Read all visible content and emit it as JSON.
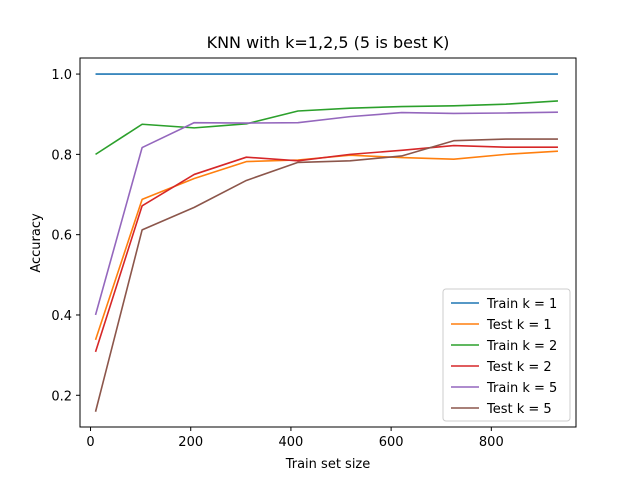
{
  "chart_data": {
    "type": "line",
    "title": "KNN with k=1,2,5 (5 is best K)",
    "xlabel": "Train set size",
    "ylabel": "Accuracy",
    "xlim": [
      -21,
      969
    ],
    "ylim": [
      0.121,
      1.04
    ],
    "xticks": [
      0,
      200,
      400,
      600,
      800
    ],
    "yticks": [
      0.2,
      0.4,
      0.6,
      0.8,
      1.0
    ],
    "xtick_labels": [
      "0",
      "200",
      "400",
      "600",
      "800"
    ],
    "ytick_labels": [
      "0.2",
      "0.4",
      "0.6",
      "0.8",
      "1.0"
    ],
    "legend_position": "lower-right",
    "x": [
      10,
      103,
      207,
      311,
      414,
      518,
      621,
      725,
      829,
      933
    ],
    "series": [
      {
        "name": "Train k = 1",
        "color": "#1f77b4",
        "values": [
          1.0,
          1.0,
          1.0,
          1.0,
          1.0,
          1.0,
          1.0,
          1.0,
          1.0,
          1.0
        ]
      },
      {
        "name": "Test k = 1",
        "color": "#ff7f0e",
        "values": [
          0.338,
          0.688,
          0.74,
          0.782,
          0.786,
          0.798,
          0.792,
          0.788,
          0.8,
          0.808
        ]
      },
      {
        "name": "Train k = 2",
        "color": "#2ca02c",
        "values": [
          0.8,
          0.875,
          0.866,
          0.876,
          0.908,
          0.915,
          0.919,
          0.921,
          0.925,
          0.933
        ]
      },
      {
        "name": "Test k = 2",
        "color": "#d62728",
        "values": [
          0.308,
          0.672,
          0.75,
          0.793,
          0.784,
          0.8,
          0.81,
          0.822,
          0.818,
          0.818
        ]
      },
      {
        "name": "Train k = 5",
        "color": "#9467bd",
        "values": [
          0.4,
          0.817,
          0.879,
          0.878,
          0.879,
          0.894,
          0.904,
          0.902,
          0.903,
          0.905
        ]
      },
      {
        "name": "Test k = 5",
        "color": "#8c564b",
        "values": [
          0.159,
          0.612,
          0.668,
          0.735,
          0.78,
          0.784,
          0.796,
          0.834,
          0.838,
          0.838
        ]
      }
    ]
  }
}
